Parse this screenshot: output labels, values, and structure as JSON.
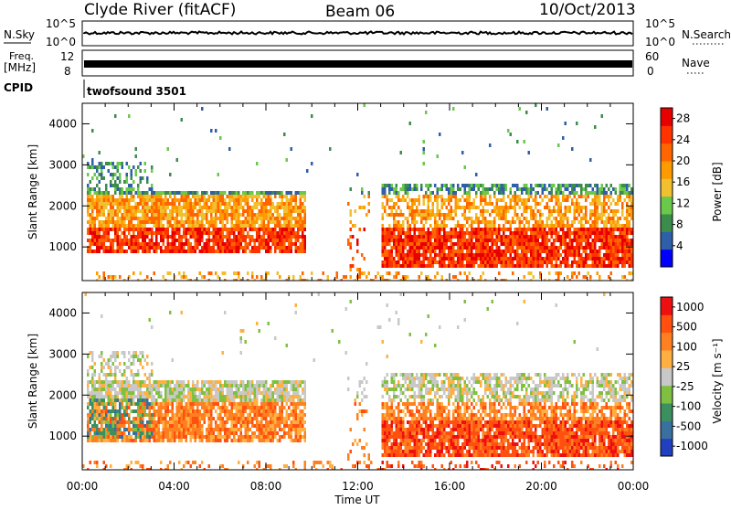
{
  "header": {
    "station": "Clyde River (fitACF)",
    "beam": "Beam 06",
    "date": "10/Oct/2013"
  },
  "strip_panels": {
    "nsky": {
      "label": "N.Sky",
      "ticks": [
        "10^5",
        "10^0"
      ]
    },
    "nsearch": {
      "label": "N.Search",
      "ticks": [
        "10^5",
        "10^0"
      ]
    },
    "freq": {
      "label_line1": "Freq.",
      "label_line2": "[MHz]",
      "ticks": [
        "12",
        "8"
      ]
    },
    "nave": {
      "label": "Nave",
      "ticks": [
        "60",
        "0"
      ]
    },
    "cpid": {
      "label": "CPID",
      "value": "twofsound 3501"
    }
  },
  "colors": {
    "power_scale": [
      "#0000ff",
      "#2f5fa8",
      "#3c8c4c",
      "#6ac84a",
      "#f0c030",
      "#ff9a00",
      "#ff6600",
      "#ff3300",
      "#e60000"
    ],
    "velocity_scale": [
      "#2040c0",
      "#3a70a0",
      "#3c9060",
      "#80c040",
      "#c8c8c8",
      "#ffb040",
      "#ff8020",
      "#ff5010",
      "#ee1010"
    ]
  },
  "chart_data": [
    {
      "type": "heatmap",
      "title": "",
      "xlabel": "",
      "ylabel": "Slant Range [km]",
      "xlim": [
        "00:00",
        "24:00"
      ],
      "ylim": [
        180,
        4500
      ],
      "x_tick_labels": [
        "00:00",
        "04:00",
        "08:00",
        "12:00",
        "16:00",
        "20:00",
        "00:00"
      ],
      "y_ticks": [
        1000,
        2000,
        3000,
        4000
      ],
      "colorbar": {
        "label": "Power [dB]",
        "ticks": [
          "4",
          "8",
          "12",
          "16",
          "20",
          "24",
          "28"
        ],
        "range": [
          0,
          30
        ]
      }
    },
    {
      "type": "heatmap",
      "title": "",
      "xlabel": "Time UT",
      "ylabel": "Slant Range [km]",
      "xlim": [
        "00:00",
        "24:00"
      ],
      "ylim": [
        180,
        4500
      ],
      "x_tick_labels": [
        "00:00",
        "04:00",
        "08:00",
        "12:00",
        "16:00",
        "20:00",
        "00:00"
      ],
      "y_ticks": [
        1000,
        2000,
        3000,
        4000
      ],
      "colorbar": {
        "label": "Velocity [m s⁻¹]",
        "ticks": [
          "1000",
          "500",
          "100",
          "25",
          "-25",
          "-100",
          "-500",
          "-1000"
        ],
        "range": [
          -1000,
          1000
        ]
      }
    }
  ]
}
